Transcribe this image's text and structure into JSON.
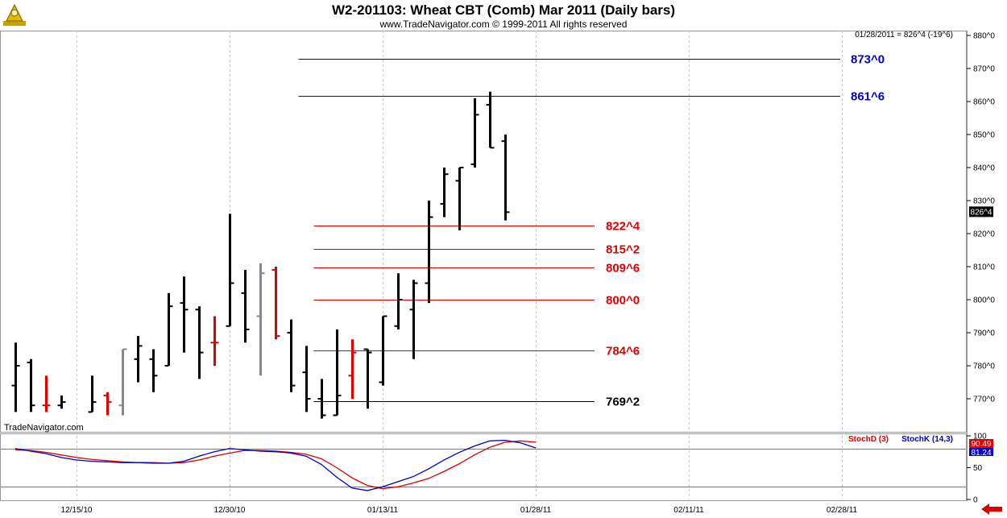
{
  "chart_data": {
    "type": "ohlc",
    "title": "W2-201103:  Wheat CBT (Comb) Mar 2011  (Daily bars)",
    "subtitle": "www.TradeNavigator.com © 1999-2011 All rights reserved",
    "watermark": "TradeNavigator.com",
    "last_quote": "01/28/2011 = 826^4 (-19^6)",
    "last_price_label": "826^4",
    "last_price": 826.5,
    "price_axis": {
      "ylim": [
        766,
        880
      ],
      "ticks": [
        {
          "value": 880,
          "label": "880^0"
        },
        {
          "value": 870,
          "label": "870^0"
        },
        {
          "value": 860,
          "label": "860^0"
        },
        {
          "value": 850,
          "label": "850^0"
        },
        {
          "value": 840,
          "label": "840^0"
        },
        {
          "value": 830,
          "label": "830^0"
        },
        {
          "value": 820,
          "label": "820^0"
        },
        {
          "value": 810,
          "label": "810^0"
        },
        {
          "value": 800,
          "label": "800^0"
        },
        {
          "value": 790,
          "label": "790^0"
        },
        {
          "value": 780,
          "label": "780^0"
        },
        {
          "value": 770,
          "label": "770^0"
        }
      ]
    },
    "date_labels": [
      "12/15/10",
      "12/30/10",
      "01/13/11",
      "01/28/11",
      "02/11/11",
      "02/28/11"
    ],
    "date_label_slots": [
      4,
      14,
      24,
      34,
      44,
      54
    ],
    "slots_visible": 65,
    "bars": [
      {
        "slot": 0,
        "open": 774,
        "high": 787,
        "low": 766,
        "close": 780,
        "color": "#000000"
      },
      {
        "slot": 1,
        "open": 781,
        "high": 782,
        "low": 766,
        "close": 768,
        "color": "#000000"
      },
      {
        "slot": 2,
        "open": 768,
        "high": 777,
        "low": 766,
        "close": 768,
        "color": "#e00000"
      },
      {
        "slot": 3,
        "open": 768,
        "high": 771,
        "low": 767,
        "close": 769,
        "color": "#000000"
      },
      {
        "slot": 5,
        "open": 766,
        "high": 777,
        "low": 766,
        "close": 769,
        "color": "#000000"
      },
      {
        "slot": 6,
        "open": 771,
        "high": 772,
        "low": 765,
        "close": 769,
        "color": "#e00000"
      },
      {
        "slot": 7,
        "open": 768,
        "high": 785,
        "low": 765,
        "close": 785,
        "color": "#888888"
      },
      {
        "slot": 8,
        "open": 782,
        "high": 789,
        "low": 775,
        "close": 786,
        "color": "#000000"
      },
      {
        "slot": 9,
        "open": 782,
        "high": 785,
        "low": 772,
        "close": 777,
        "color": "#000000"
      },
      {
        "slot": 10,
        "open": 780,
        "high": 802,
        "low": 780,
        "close": 798,
        "color": "#000000"
      },
      {
        "slot": 11,
        "open": 799,
        "high": 807,
        "low": 784,
        "close": 797,
        "color": "#000000"
      },
      {
        "slot": 12,
        "open": 797,
        "high": 798,
        "low": 776,
        "close": 784,
        "color": "#000000"
      },
      {
        "slot": 13,
        "open": 787,
        "high": 795,
        "low": 780,
        "close": 787,
        "color": "#e00000"
      },
      {
        "slot": 14,
        "open": 792,
        "high": 826,
        "low": 792,
        "close": 805,
        "color": "#000000"
      },
      {
        "slot": 15,
        "open": 802,
        "high": 809,
        "low": 787,
        "close": 791,
        "color": "#000000"
      },
      {
        "slot": 16,
        "open": 795,
        "high": 811,
        "low": 777,
        "close": 808,
        "color": "#888888"
      },
      {
        "slot": 17,
        "open": 809,
        "high": 810,
        "low": 788,
        "close": 789,
        "color": "#e00000"
      },
      {
        "slot": 18,
        "open": 790,
        "high": 794,
        "low": 772,
        "close": 774,
        "color": "#000000"
      },
      {
        "slot": 19,
        "open": 778,
        "high": 786,
        "low": 766,
        "close": 770,
        "color": "#000000"
      },
      {
        "slot": 20,
        "open": 770,
        "high": 776,
        "low": 764,
        "close": 765,
        "color": "#000000"
      },
      {
        "slot": 21,
        "open": 765,
        "high": 791,
        "low": 765,
        "close": 771,
        "color": "#000000"
      },
      {
        "slot": 22,
        "open": 777,
        "high": 788,
        "low": 770,
        "close": 784,
        "color": "#e00000"
      },
      {
        "slot": 23,
        "open": 785,
        "high": 785,
        "low": 767,
        "close": 784,
        "color": "#000000"
      },
      {
        "slot": 24,
        "open": 775,
        "high": 795,
        "low": 774,
        "close": 795,
        "color": "#000000"
      },
      {
        "slot": 25,
        "open": 792,
        "high": 808,
        "low": 791,
        "close": 800,
        "color": "#000000"
      },
      {
        "slot": 26,
        "open": 797,
        "high": 806,
        "low": 782,
        "close": 805,
        "color": "#000000"
      },
      {
        "slot": 27,
        "open": 805,
        "high": 830,
        "low": 799,
        "close": 825,
        "color": "#000000"
      },
      {
        "slot": 28,
        "open": 829,
        "high": 840,
        "low": 825,
        "close": 838,
        "color": "#000000"
      },
      {
        "slot": 29,
        "open": 836,
        "high": 840,
        "low": 821,
        "close": 840,
        "color": "#000000"
      },
      {
        "slot": 30,
        "open": 841,
        "high": 861,
        "low": 840,
        "close": 856,
        "color": "#000000"
      },
      {
        "slot": 31,
        "open": 859,
        "high": 863,
        "low": 846,
        "close": 846,
        "color": "#000000"
      },
      {
        "slot": 32,
        "open": 848,
        "high": 850,
        "low": 824,
        "close": 826.5,
        "color": "#000000"
      }
    ],
    "levels": [
      {
        "label": "873^0",
        "value": 873,
        "color": "#0000cc",
        "from_slot": 18.5
      },
      {
        "label": "861^6",
        "value": 861.75,
        "color": "#0000cc",
        "from_slot": 18.5
      },
      {
        "label": "822^4",
        "value": 822.5,
        "color": "#e00000",
        "from_slot": 19.5
      },
      {
        "label": "815^2",
        "value": 815.25,
        "color": "#e00000",
        "from_slot": 19.5
      },
      {
        "label": "809^6",
        "value": 809.75,
        "color": "#e00000",
        "from_slot": 19.5
      },
      {
        "label": "800^0",
        "value": 800,
        "color": "#e00000",
        "from_slot": 19.5
      },
      {
        "label": "784^6",
        "value": 784.75,
        "color": "#e00000",
        "from_slot": 19.5
      },
      {
        "label": "769^2",
        "value": 769.25,
        "color": "#000000",
        "from_slot": 19.5
      }
    ],
    "stochastic": {
      "ylim": [
        0,
        100
      ],
      "ticks": [
        {
          "value": 100,
          "label": "100"
        },
        {
          "value": 50,
          "label": "50"
        },
        {
          "value": 0,
          "label": "0"
        }
      ],
      "reference_lines": [
        80,
        20
      ],
      "legend_d": "StochD (3)",
      "legend_k": "StochK (14,3)",
      "d_value_label": "90.49",
      "k_value_label": "81.24",
      "d_color": "#e00000",
      "k_color": "#0000cc",
      "k_series": [
        80,
        76,
        72,
        66,
        62,
        60,
        59,
        58,
        58,
        57,
        57,
        60,
        68,
        75,
        80,
        78,
        76,
        75,
        73,
        68,
        55,
        35,
        18,
        14,
        20,
        28,
        36,
        48,
        62,
        74,
        84,
        92,
        93,
        89,
        81
      ],
      "d_series": [
        78,
        77,
        74,
        70,
        66,
        63,
        61,
        59,
        58,
        58,
        57,
        58,
        62,
        68,
        73,
        77,
        77,
        76,
        74,
        71,
        64,
        50,
        34,
        22,
        17,
        20,
        26,
        33,
        44,
        56,
        70,
        82,
        90,
        92,
        90
      ]
    }
  }
}
